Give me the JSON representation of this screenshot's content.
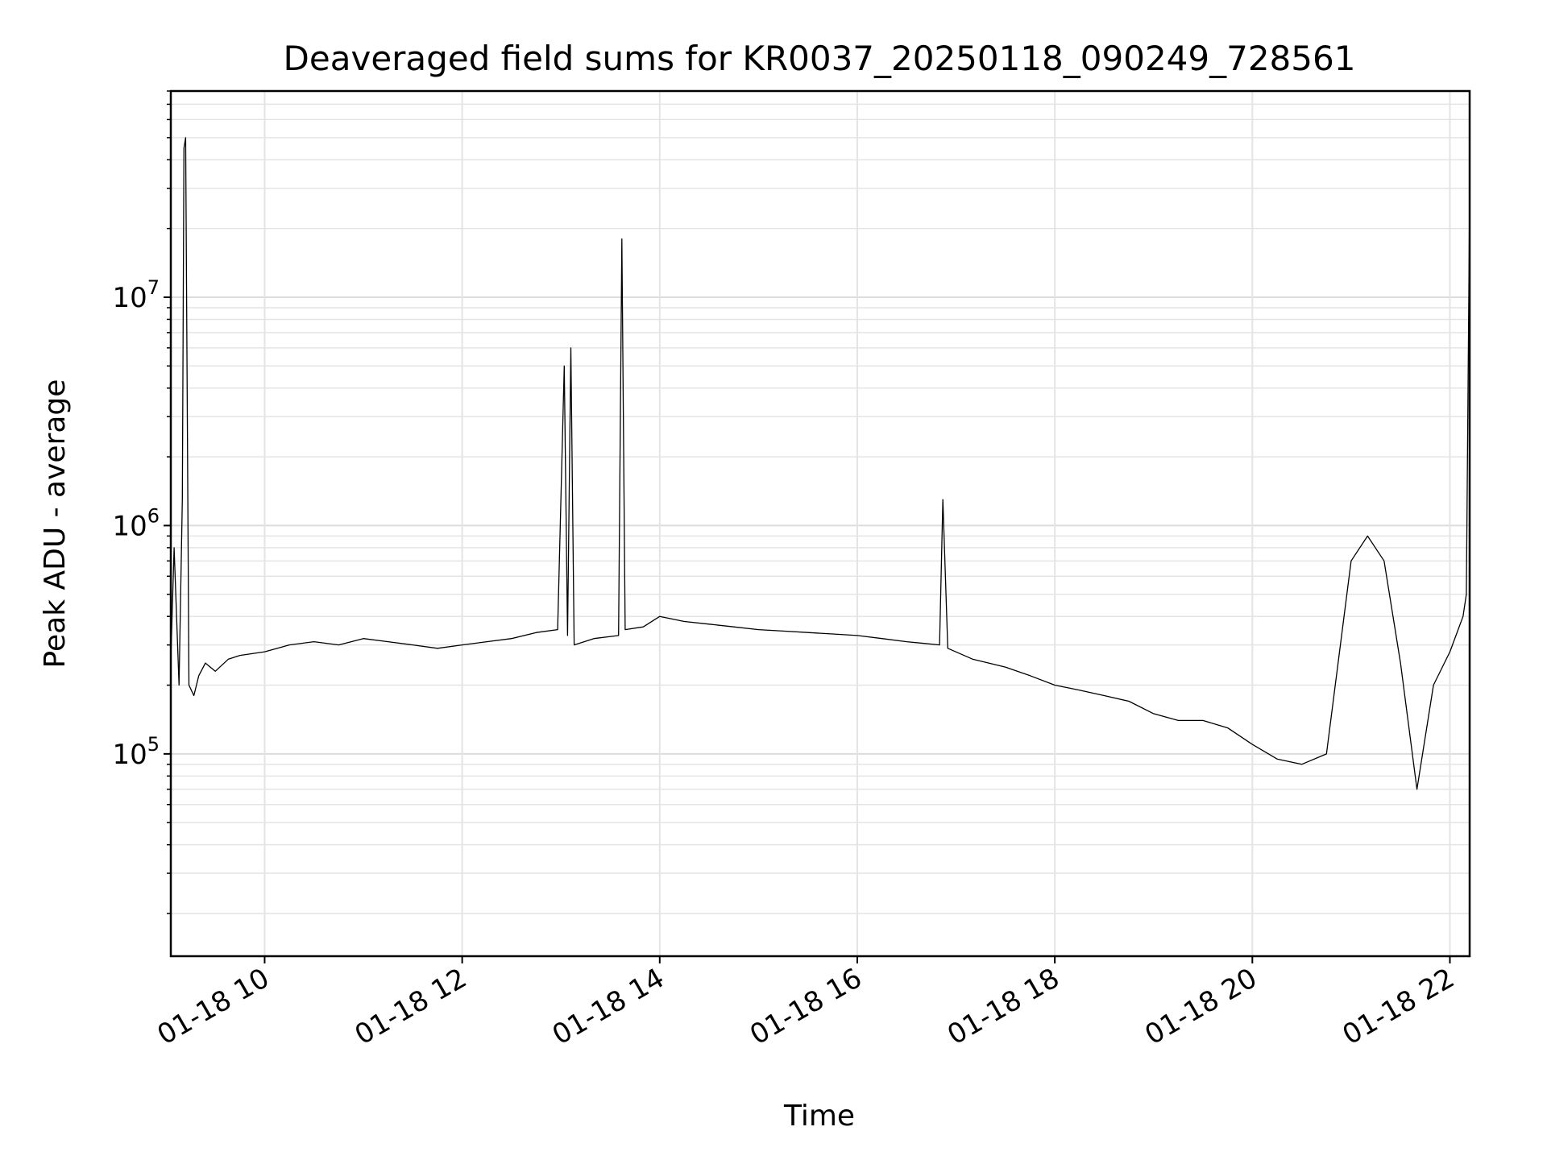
{
  "chart_data": {
    "type": "line",
    "title": "Deaveraged field sums for KR0037_20250118_090249_728561",
    "xlabel": "Time",
    "ylabel": "Peak ADU - average",
    "y_scale": "log",
    "grid": true,
    "line_color": "#000000",
    "xlim": [
      "01-18 09:03",
      "01-18 22:12"
    ],
    "ylim": [
      13000,
      80000000
    ],
    "x_ticks": [
      {
        "t": "01-18 10:00",
        "label": "01-18 10"
      },
      {
        "t": "01-18 12:00",
        "label": "01-18 12"
      },
      {
        "t": "01-18 14:00",
        "label": "01-18 14"
      },
      {
        "t": "01-18 16:00",
        "label": "01-18 16"
      },
      {
        "t": "01-18 18:00",
        "label": "01-18 18"
      },
      {
        "t": "01-18 20:00",
        "label": "01-18 20"
      },
      {
        "t": "01-18 22:00",
        "label": "01-18 22"
      }
    ],
    "y_ticks": [
      {
        "value": 100000,
        "base": "10",
        "exp": "5"
      },
      {
        "value": 1000000,
        "base": "10",
        "exp": "6"
      },
      {
        "value": 10000000,
        "base": "10",
        "exp": "7"
      }
    ],
    "series": [
      {
        "x": [
          "01-18 09:03",
          "01-18 09:05",
          "01-18 09:08",
          "01-18 09:10",
          "01-18 09:11",
          "01-18 09:12",
          "01-18 09:14",
          "01-18 09:17",
          "01-18 09:20",
          "01-18 09:24",
          "01-18 09:30",
          "01-18 09:38",
          "01-18 09:45",
          "01-18 10:00",
          "01-18 10:15",
          "01-18 10:30",
          "01-18 10:45",
          "01-18 11:00",
          "01-18 11:15",
          "01-18 11:30",
          "01-18 11:45",
          "01-18 12:00",
          "01-18 12:15",
          "01-18 12:30",
          "01-18 12:45",
          "01-18 12:58",
          "01-18 13:02",
          "01-18 13:04",
          "01-18 13:06",
          "01-18 13:08",
          "01-18 13:20",
          "01-18 13:35",
          "01-18 13:37",
          "01-18 13:39",
          "01-18 13:50",
          "01-18 14:00",
          "01-18 14:15",
          "01-18 14:30",
          "01-18 14:45",
          "01-18 15:00",
          "01-18 15:15",
          "01-18 15:30",
          "01-18 15:45",
          "01-18 16:00",
          "01-18 16:15",
          "01-18 16:30",
          "01-18 16:50",
          "01-18 16:52",
          "01-18 16:55",
          "01-18 17:10",
          "01-18 17:30",
          "01-18 17:45",
          "01-18 18:00",
          "01-18 18:15",
          "01-18 18:30",
          "01-18 18:45",
          "01-18 19:00",
          "01-18 19:15",
          "01-18 19:30",
          "01-18 19:45",
          "01-18 20:00",
          "01-18 20:15",
          "01-18 20:30",
          "01-18 20:45",
          "01-18 21:00",
          "01-18 21:10",
          "01-18 21:20",
          "01-18 21:30",
          "01-18 21:40",
          "01-18 21:50",
          "01-18 22:00",
          "01-18 22:05",
          "01-18 22:08",
          "01-18 22:10",
          "01-18 22:12"
        ],
        "y": [
          260000,
          800000,
          200000,
          1300000,
          45000000,
          50000000,
          200000,
          180000,
          220000,
          250000,
          230000,
          260000,
          270000,
          280000,
          300000,
          310000,
          300000,
          320000,
          310000,
          300000,
          290000,
          300000,
          310000,
          320000,
          340000,
          350000,
          5000000,
          330000,
          6000000,
          300000,
          320000,
          330000,
          18000000,
          350000,
          360000,
          400000,
          380000,
          370000,
          360000,
          350000,
          345000,
          340000,
          335000,
          330000,
          320000,
          310000,
          300000,
          1300000,
          290000,
          260000,
          240000,
          220000,
          200000,
          190000,
          180000,
          170000,
          150000,
          140000,
          140000,
          130000,
          110000,
          95000,
          90000,
          100000,
          700000,
          900000,
          700000,
          250000,
          70000,
          200000,
          280000,
          350000,
          400000,
          500000,
          28000000
        ]
      }
    ]
  }
}
